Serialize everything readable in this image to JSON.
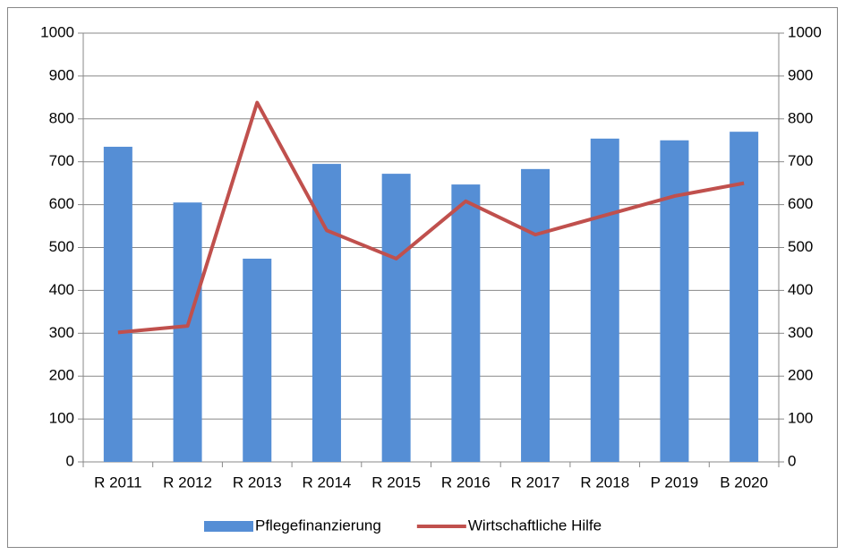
{
  "chart_data": {
    "type": "bar_line",
    "categories": [
      "R 2011",
      "R 2012",
      "R 2013",
      "R 2014",
      "R 2015",
      "R 2016",
      "R 2017",
      "R 2018",
      "P 2019",
      "B 2020"
    ],
    "series": [
      {
        "name": "Pflegefinanzierung",
        "type": "bar",
        "color": "#558ed5",
        "values": [
          735,
          605,
          474,
          695,
          672,
          647,
          683,
          754,
          750,
          770
        ]
      },
      {
        "name": "Wirtschaftliche Hilfe",
        "type": "line",
        "axis": "y2",
        "color": "#c0504d",
        "values": [
          302,
          317,
          838,
          540,
          474,
          608,
          530,
          575,
          620,
          650
        ]
      }
    ],
    "ylim": [
      0,
      1000
    ],
    "yticks": [
      0,
      100,
      200,
      300,
      400,
      500,
      600,
      700,
      800,
      900,
      1000
    ],
    "y2lim": [
      0,
      1000
    ],
    "y2ticks": [
      0,
      100,
      200,
      300,
      400,
      500,
      600,
      700,
      800,
      900,
      1000
    ],
    "grid": true,
    "legend": "bottom"
  }
}
